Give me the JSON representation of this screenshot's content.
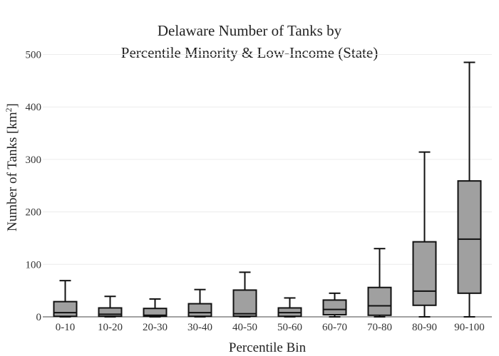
{
  "chart_data": {
    "type": "box",
    "title_line1": "Delaware Number of Tanks by",
    "title_line2": "Percentile Minority & Low-Income (State)",
    "xlabel": "Percentile Bin",
    "ylabel": "Number of Tanks  [km",
    "ylabel_sup": "2",
    "ylabel_close": "]",
    "ylim": [
      0,
      520
    ],
    "yticks": [
      0,
      100,
      200,
      300,
      400,
      500
    ],
    "ytick_labels": [
      "0",
      "100",
      "200",
      "300",
      "400",
      "500"
    ],
    "grid": true,
    "categories": [
      "0-10",
      "10-20",
      "20-30",
      "30-40",
      "40-50",
      "50-60",
      "60-70",
      "70-80",
      "80-90",
      "90-100"
    ],
    "boxes": [
      {
        "min": 0,
        "q1": 1,
        "median": 8,
        "q3": 29,
        "max": 69
      },
      {
        "min": 0,
        "q1": 1,
        "median": 5,
        "q3": 17,
        "max": 39
      },
      {
        "min": 0,
        "q1": 1,
        "median": 3,
        "q3": 16,
        "max": 34
      },
      {
        "min": 0,
        "q1": 1,
        "median": 8,
        "q3": 25,
        "max": 52
      },
      {
        "min": 0,
        "q1": 1,
        "median": 6,
        "q3": 51,
        "max": 85
      },
      {
        "min": 0,
        "q1": 1,
        "median": 8,
        "q3": 17,
        "max": 36
      },
      {
        "min": 0,
        "q1": 4,
        "median": 14,
        "q3": 32,
        "max": 45
      },
      {
        "min": 0,
        "q1": 3,
        "median": 21,
        "q3": 56,
        "max": 130
      },
      {
        "min": 0,
        "q1": 22,
        "median": 49,
        "q3": 143,
        "max": 314
      },
      {
        "min": 0,
        "q1": 45,
        "median": 148,
        "q3": 259,
        "max": 485
      }
    ],
    "box_color": "#a0a0a0",
    "line_color": "#111111"
  }
}
